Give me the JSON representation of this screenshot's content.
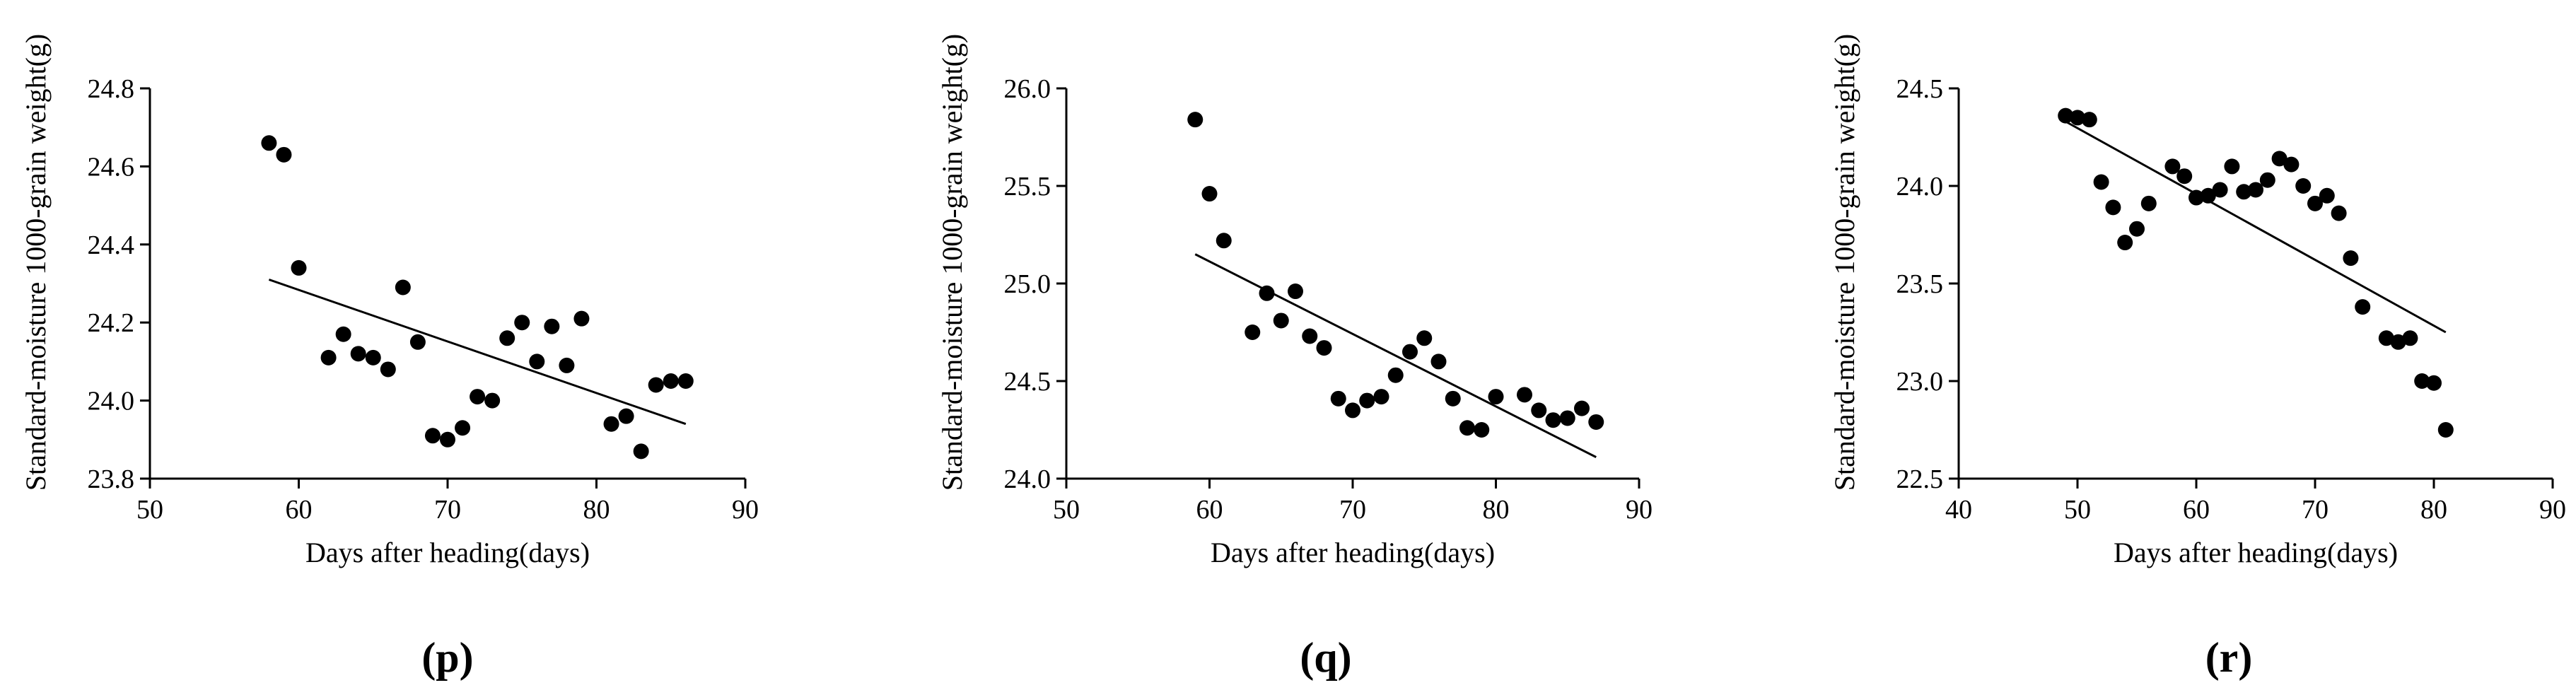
{
  "chart_data": [
    {
      "type": "scatter",
      "panel_label": "(p)",
      "xlabel": "Days after heading(days)",
      "ylabel": "Standard-moisture 1000-grain weight(g)",
      "xlim": [
        50,
        90
      ],
      "ylim": [
        23.8,
        24.8
      ],
      "xticks": [
        50,
        60,
        70,
        80,
        90
      ],
      "yticks": [
        23.8,
        24.0,
        24.2,
        24.4,
        24.6,
        24.8
      ],
      "ytick_decimals": 1,
      "x": [
        58,
        59,
        60,
        62,
        63,
        64,
        65,
        66,
        67,
        68,
        69,
        70,
        71,
        72,
        73,
        74,
        75,
        76,
        77,
        78,
        79,
        81,
        82,
        83,
        84,
        85,
        86
      ],
      "y": [
        24.66,
        24.63,
        24.34,
        24.11,
        24.17,
        24.12,
        24.11,
        24.08,
        24.29,
        24.15,
        23.91,
        23.9,
        23.93,
        24.01,
        24.0,
        24.16,
        24.2,
        24.1,
        24.19,
        24.09,
        24.21,
        23.94,
        23.96,
        23.87,
        24.04,
        24.05,
        24.05
      ],
      "trend": {
        "x": [
          58,
          86
        ],
        "y": [
          24.31,
          23.94
        ]
      }
    },
    {
      "type": "scatter",
      "panel_label": "(q)",
      "xlabel": "Days after heading(days)",
      "ylabel": "Standard-moisture 1000-grain weight(g)",
      "xlim": [
        50,
        90
      ],
      "ylim": [
        24.0,
        26.0
      ],
      "xticks": [
        50,
        60,
        70,
        80,
        90
      ],
      "yticks": [
        24.0,
        24.5,
        25.0,
        25.5,
        26.0
      ],
      "ytick_decimals": 1,
      "x": [
        59,
        60,
        61,
        63,
        64,
        65,
        66,
        67,
        68,
        69,
        70,
        71,
        72,
        73,
        74,
        75,
        76,
        77,
        78,
        79,
        80,
        82,
        83,
        84,
        85,
        86,
        87
      ],
      "y": [
        25.84,
        25.46,
        25.22,
        24.75,
        24.95,
        24.81,
        24.96,
        24.73,
        24.67,
        24.41,
        24.35,
        24.4,
        24.42,
        24.53,
        24.65,
        24.72,
        24.6,
        24.41,
        24.26,
        24.25,
        24.42,
        24.43,
        24.35,
        24.3,
        24.31,
        24.36,
        24.29
      ],
      "trend": {
        "x": [
          59,
          87
        ],
        "y": [
          25.15,
          24.11
        ]
      }
    },
    {
      "type": "scatter",
      "panel_label": "(r)",
      "xlabel": "Days after heading(days)",
      "ylabel": "Standard-moisture 1000-grain weight(g)",
      "xlim": [
        40,
        90
      ],
      "ylim": [
        22.5,
        24.5
      ],
      "xticks": [
        40,
        50,
        60,
        70,
        80,
        90
      ],
      "yticks": [
        22.5,
        23.0,
        23.5,
        24.0,
        24.5
      ],
      "ytick_decimals": 1,
      "x": [
        49,
        50,
        51,
        52,
        53,
        54,
        55,
        56,
        58,
        59,
        60,
        61,
        62,
        63,
        64,
        65,
        66,
        67,
        68,
        69,
        70,
        71,
        72,
        73,
        74,
        76,
        77,
        78,
        79,
        80,
        81
      ],
      "y": [
        24.36,
        24.35,
        24.34,
        24.02,
        23.89,
        23.71,
        23.78,
        23.91,
        24.1,
        24.05,
        23.94,
        23.95,
        23.98,
        24.1,
        23.97,
        23.98,
        24.03,
        24.14,
        24.11,
        24.0,
        23.91,
        23.95,
        23.86,
        23.63,
        23.38,
        23.22,
        23.2,
        23.22,
        23.0,
        22.99,
        22.75
      ],
      "trend": {
        "x": [
          49,
          81
        ],
        "y": [
          24.33,
          23.25
        ]
      }
    }
  ]
}
